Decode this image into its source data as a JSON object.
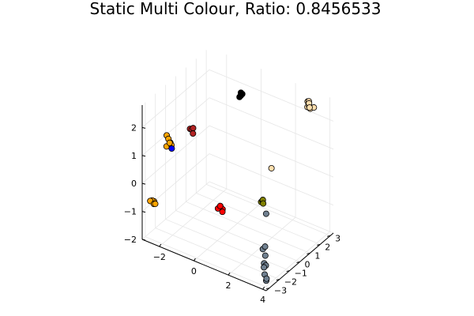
{
  "chart_data": {
    "type": "scatter3d",
    "title": "Static Multi Colour, Ratio: 0.8456533",
    "grid": true,
    "legend": "none",
    "x_ticks": [
      -2,
      0,
      2,
      4
    ],
    "y_ticks": [
      -3,
      -2,
      -1,
      0,
      1,
      2,
      3
    ],
    "z_ticks": [
      -2,
      -1,
      0,
      1,
      2
    ],
    "xlim": [
      -3,
      4.2
    ],
    "ylim": [
      -3.3,
      3.3
    ],
    "zlim": [
      -2,
      2.8
    ],
    "series": [
      {
        "color": "#ffdead",
        "points": [
          [
            3.2,
            2.6,
            2.6
          ],
          [
            3.35,
            2.4,
            2.55
          ],
          [
            3.0,
            2.8,
            2.55
          ],
          [
            3.3,
            2.55,
            2.45
          ],
          [
            3.15,
            2.7,
            2.45
          ],
          [
            3.45,
            2.65,
            2.5
          ],
          [
            3.1,
            2.75,
            2.6
          ],
          [
            3.05,
            2.7,
            2.4
          ],
          [
            2.2,
            0.6,
            0.65
          ]
        ]
      },
      {
        "color": "#000000",
        "points": [
          [
            -0.4,
            2.0,
            2.15
          ],
          [
            -0.35,
            2.05,
            2.2
          ],
          [
            -0.45,
            1.95,
            2.1
          ],
          [
            -0.4,
            2.0,
            2.25
          ]
        ]
      },
      {
        "color": "#b22222",
        "points": [
          [
            -1.6,
            -0.8,
            1.5
          ],
          [
            -1.5,
            -0.85,
            1.4
          ],
          [
            -1.65,
            -0.7,
            1.45
          ],
          [
            -1.55,
            -0.75,
            1.55
          ],
          [
            -1.7,
            -0.8,
            1.5
          ]
        ]
      },
      {
        "color": "#ffa500",
        "points": [
          [
            -2.6,
            -1.4,
            1.1
          ],
          [
            -2.5,
            -1.45,
            1.0
          ],
          [
            -2.55,
            -1.3,
            0.95
          ],
          [
            -2.65,
            -1.5,
            0.85
          ],
          [
            -2.7,
            -1.4,
            1.2
          ],
          [
            -2.45,
            -1.35,
            0.9
          ],
          [
            -2.6,
            -3.0,
            -0.6
          ],
          [
            -2.5,
            -3.0,
            -0.7
          ],
          [
            -2.55,
            -2.9,
            -0.65
          ],
          [
            -2.65,
            -3.1,
            -0.6
          ],
          [
            -2.45,
            -2.95,
            -0.7
          ]
        ]
      },
      {
        "color": "#0000ff",
        "points": [
          [
            -2.35,
            -1.5,
            0.85
          ]
        ]
      },
      {
        "color": "#808000",
        "points": [
          [
            2.25,
            -0.5,
            -0.2
          ],
          [
            2.35,
            -0.5,
            -0.1
          ],
          [
            2.3,
            -0.45,
            -0.15
          ],
          [
            2.4,
            -0.55,
            -0.2
          ]
        ]
      },
      {
        "color": "#ff0000",
        "points": [
          [
            0.65,
            -1.8,
            -0.35
          ],
          [
            0.75,
            -1.75,
            -0.45
          ],
          [
            0.7,
            -1.9,
            -0.3
          ],
          [
            0.8,
            -1.85,
            -0.5
          ],
          [
            0.6,
            -1.95,
            -0.4
          ]
        ]
      },
      {
        "color": "#708090",
        "points": [
          [
            2.6,
            -0.6,
            -0.5
          ],
          [
            3.0,
            -1.6,
            -1.35
          ],
          [
            3.1,
            -1.55,
            -1.25
          ],
          [
            3.2,
            -1.7,
            -1.5
          ],
          [
            3.25,
            -1.9,
            -1.7
          ],
          [
            3.3,
            -2.0,
            -1.8
          ],
          [
            3.35,
            -1.9,
            -1.75
          ],
          [
            3.4,
            -2.1,
            -2.0
          ],
          [
            3.55,
            -2.2,
            -2.15
          ],
          [
            3.6,
            -2.25,
            -2.05
          ]
        ]
      }
    ]
  }
}
